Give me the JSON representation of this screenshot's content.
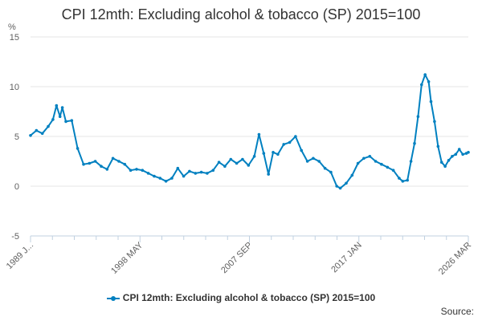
{
  "chart_data": {
    "type": "line",
    "title": "CPI 12mth: Excluding alcohol & tobacco (SP) 2015=100",
    "ylabel_unit": "%",
    "ylim": [
      -5,
      15
    ],
    "yticks": [
      "15",
      "10",
      "5",
      "0",
      "-5"
    ],
    "xticks": [
      "1989 J...",
      "1998 MAY",
      "2007 SEP",
      "2017 JAN",
      "2026 MAR"
    ],
    "x_range": [
      1989.0,
      2026.17
    ],
    "grid": true,
    "legend_position": "bottom",
    "series": [
      {
        "name": "CPI 12mth: Excluding alcohol & tobacco (SP) 2015=100",
        "color": "#0080c0",
        "x": [
          1989.0,
          1989.5,
          1990.0,
          1990.5,
          1990.9,
          1991.2,
          1991.5,
          1991.7,
          1992.0,
          1992.5,
          1993.0,
          1993.5,
          1994.0,
          1994.5,
          1995.0,
          1995.5,
          1996.0,
          1996.5,
          1997.0,
          1997.5,
          1998.0,
          1998.5,
          1999.0,
          1999.5,
          2000.0,
          2000.5,
          2001.0,
          2001.5,
          2002.0,
          2002.5,
          2003.0,
          2003.5,
          2004.0,
          2004.5,
          2005.0,
          2005.5,
          2006.0,
          2006.5,
          2007.0,
          2007.5,
          2008.0,
          2008.4,
          2008.8,
          2009.2,
          2009.6,
          2010.0,
          2010.5,
          2011.0,
          2011.5,
          2012.0,
          2012.5,
          2013.0,
          2013.5,
          2014.0,
          2014.5,
          2015.0,
          2015.3,
          2015.8,
          2016.3,
          2016.8,
          2017.3,
          2017.8,
          2018.3,
          2018.8,
          2019.3,
          2019.8,
          2020.3,
          2020.6,
          2021.0,
          2021.3,
          2021.6,
          2021.9,
          2022.2,
          2022.5,
          2022.8,
          2023.0,
          2023.3,
          2023.6,
          2023.9,
          2024.2,
          2024.5,
          2024.8,
          2025.1,
          2025.4,
          2025.7,
          2026.0,
          2026.17
        ],
        "values": [
          5.1,
          5.6,
          5.3,
          6.0,
          6.7,
          8.1,
          7.0,
          7.9,
          6.5,
          6.6,
          3.8,
          2.2,
          2.3,
          2.5,
          2.0,
          1.7,
          2.8,
          2.5,
          2.2,
          1.6,
          1.7,
          1.6,
          1.3,
          1.0,
          0.8,
          0.5,
          0.8,
          1.8,
          1.0,
          1.5,
          1.3,
          1.4,
          1.3,
          1.6,
          2.4,
          2.0,
          2.7,
          2.3,
          2.7,
          2.1,
          3.0,
          5.2,
          3.3,
          1.2,
          3.4,
          3.2,
          4.2,
          4.4,
          5.0,
          3.6,
          2.5,
          2.8,
          2.5,
          1.8,
          1.4,
          0.0,
          -0.2,
          0.3,
          1.1,
          2.3,
          2.8,
          3.0,
          2.5,
          2.2,
          1.9,
          1.6,
          0.8,
          0.5,
          0.6,
          2.5,
          4.3,
          7.0,
          10.2,
          11.2,
          10.5,
          8.5,
          6.5,
          4.0,
          2.4,
          2.0,
          2.6,
          3.0,
          3.2,
          3.7,
          3.2,
          3.3,
          3.4
        ]
      }
    ]
  },
  "legend": {
    "label": "CPI 12mth: Excluding alcohol & tobacco (SP) 2015=100"
  },
  "source": {
    "label": "Source:"
  }
}
